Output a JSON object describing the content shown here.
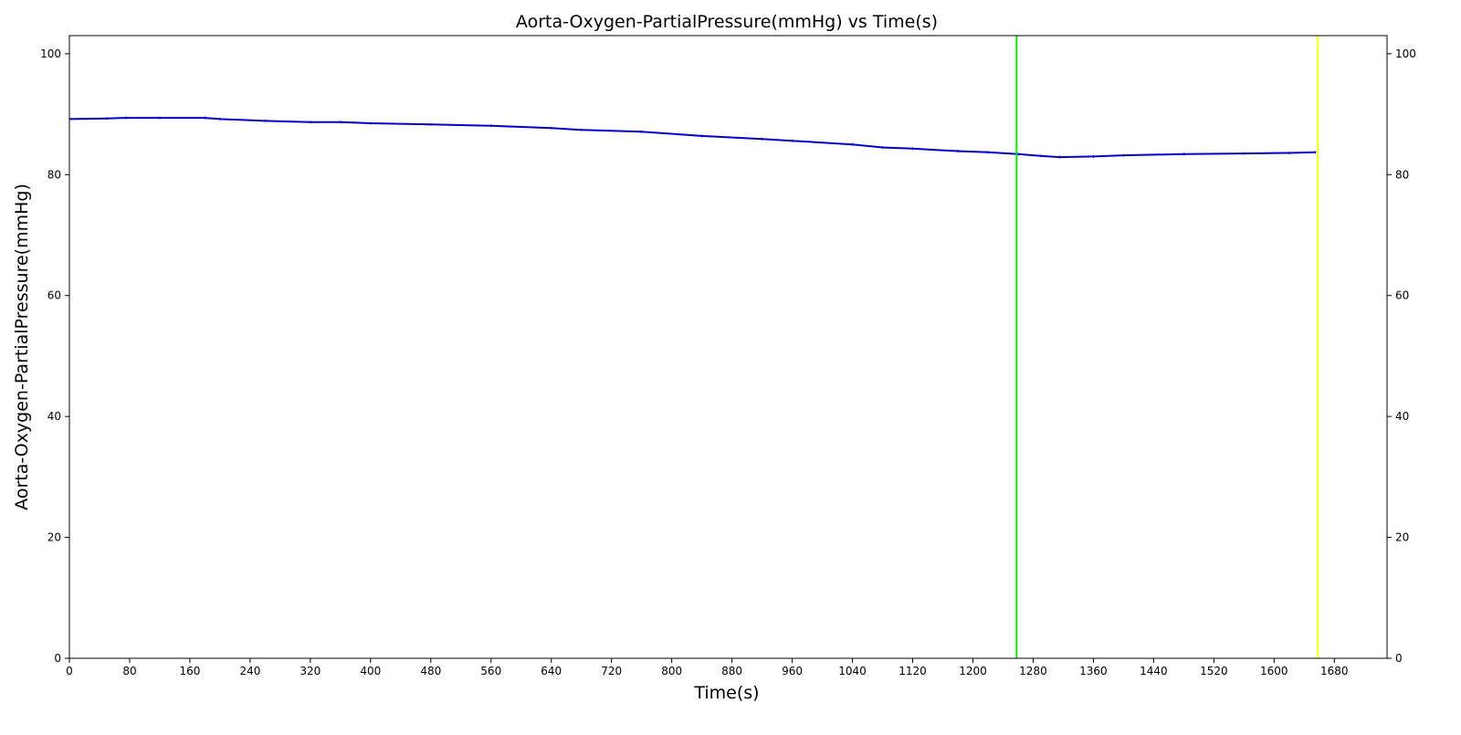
{
  "chart_data": {
    "type": "line",
    "title": "Aorta-Oxygen-PartialPressure(mmHg) vs Time(s)",
    "xlabel": "Time(s)",
    "ylabel": "Aorta-Oxygen-PartialPressure(mmHg)",
    "xlim": [
      0,
      1750
    ],
    "ylim": [
      0,
      103
    ],
    "x_ticks": [
      0,
      80,
      160,
      240,
      320,
      400,
      480,
      560,
      640,
      720,
      800,
      880,
      960,
      1040,
      1120,
      1200,
      1280,
      1360,
      1440,
      1520,
      1600,
      1680
    ],
    "y_ticks": [
      0,
      20,
      40,
      60,
      80,
      100
    ],
    "right_y_axis": true,
    "grid": false,
    "series": [
      {
        "color": "#0000cc",
        "x": [
          0,
          50,
          75,
          120,
          180,
          200,
          260,
          320,
          360,
          400,
          480,
          560,
          640,
          680,
          760,
          840,
          920,
          960,
          1040,
          1080,
          1120,
          1180,
          1220,
          1260,
          1290,
          1315,
          1360,
          1400,
          1480,
          1560,
          1620,
          1655
        ],
        "y": [
          89.2,
          89.3,
          89.4,
          89.4,
          89.4,
          89.2,
          88.9,
          88.7,
          88.7,
          88.5,
          88.3,
          88.1,
          87.7,
          87.4,
          87.1,
          86.4,
          85.9,
          85.6,
          85.0,
          84.5,
          84.3,
          83.9,
          83.7,
          83.4,
          83.1,
          82.9,
          83.0,
          83.2,
          83.4,
          83.5,
          83.6,
          83.7
        ]
      }
    ],
    "vlines": [
      {
        "x": 1258,
        "color": "#00ee00"
      },
      {
        "x": 1658,
        "color": "#ffff00"
      }
    ]
  }
}
